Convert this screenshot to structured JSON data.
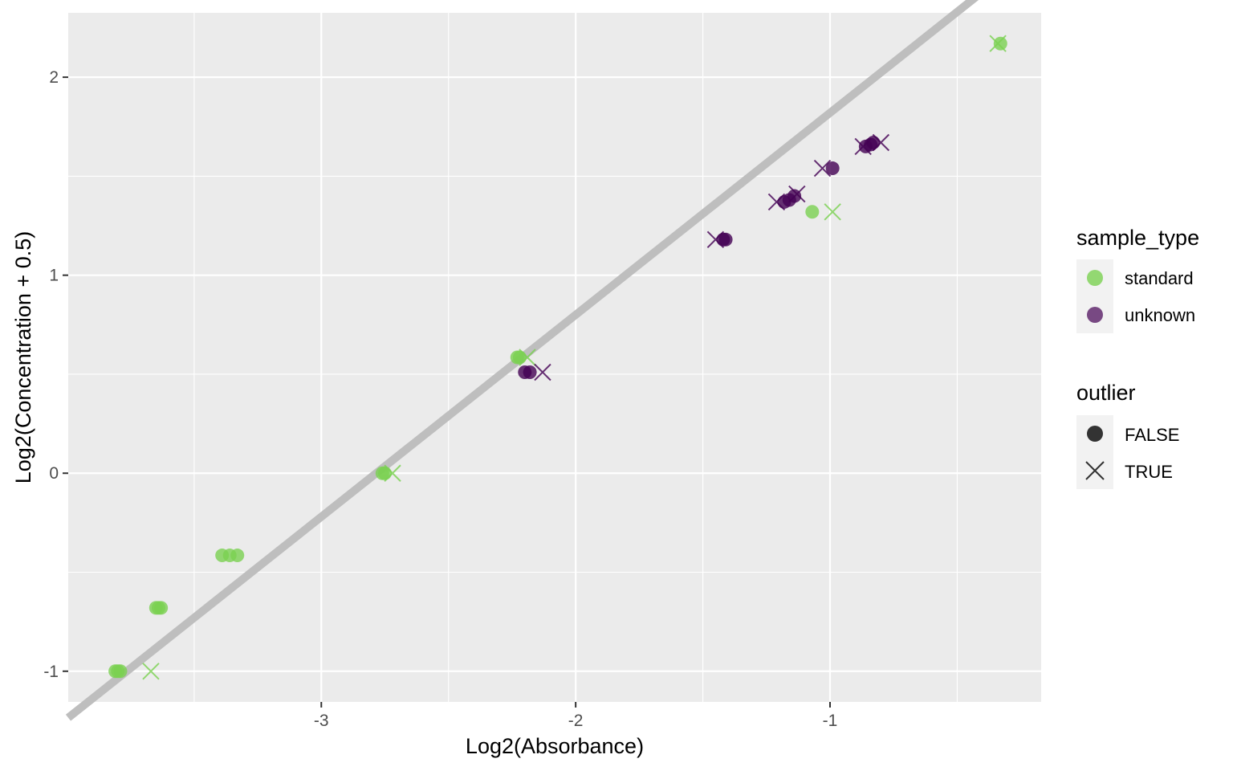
{
  "chart_data": {
    "type": "scatter",
    "title": "",
    "xlabel": "Log2(Absorbance)",
    "ylabel": "Log2(Concentration + 0.5)",
    "xlim": [
      -3.995,
      -0.17
    ],
    "ylim": [
      -1.155,
      2.325
    ],
    "x_major_ticks": [
      -3,
      -2,
      -1
    ],
    "x_minor_ticks": [
      -3.5,
      -2.5,
      -1.5,
      -0.5
    ],
    "y_major_ticks": [
      -1,
      0,
      1,
      2
    ],
    "y_minor_ticks": [
      -0.5,
      0.5,
      1.5
    ],
    "x_tick_labels": [
      "-3",
      "-2",
      "-1"
    ],
    "y_tick_labels": [
      "-1",
      "0",
      "1",
      "2"
    ],
    "grid": true,
    "colors": {
      "panel_background": "#EBEBEB",
      "grid": "#FFFFFF",
      "standard": "#7AD151",
      "unknown": "#440154",
      "fit_line": "#BEBEBE",
      "legend_key_background": "#F2F2F2",
      "legend_shape_key": "#333333"
    },
    "fit_line": {
      "slope": 1.02,
      "intercept": 2.84
    },
    "series": [
      {
        "name": "standard",
        "points": [
          {
            "x": -3.81,
            "y": -1.0,
            "outlier": false
          },
          {
            "x": -3.8,
            "y": -1.0,
            "outlier": false
          },
          {
            "x": -3.79,
            "y": -1.0,
            "outlier": false
          },
          {
            "x": -3.67,
            "y": -1.0,
            "outlier": true
          },
          {
            "x": -3.65,
            "y": -0.68,
            "outlier": false
          },
          {
            "x": -3.64,
            "y": -0.68,
            "outlier": false
          },
          {
            "x": -3.63,
            "y": -0.68,
            "outlier": false
          },
          {
            "x": -3.39,
            "y": -0.415,
            "outlier": false
          },
          {
            "x": -3.36,
            "y": -0.415,
            "outlier": false
          },
          {
            "x": -3.33,
            "y": -0.415,
            "outlier": false
          },
          {
            "x": -2.76,
            "y": 0.0,
            "outlier": false
          },
          {
            "x": -2.75,
            "y": 0.0,
            "outlier": false
          },
          {
            "x": -2.72,
            "y": 0.0,
            "outlier": true
          },
          {
            "x": -2.23,
            "y": 0.585,
            "outlier": false
          },
          {
            "x": -2.22,
            "y": 0.585,
            "outlier": false
          },
          {
            "x": -2.19,
            "y": 0.585,
            "outlier": true
          },
          {
            "x": -1.07,
            "y": 1.32,
            "outlier": false
          },
          {
            "x": -0.99,
            "y": 1.32,
            "outlier": true
          },
          {
            "x": -0.34,
            "y": 2.17,
            "outlier": true
          },
          {
            "x": -0.33,
            "y": 2.17,
            "outlier": false
          }
        ]
      },
      {
        "name": "unknown",
        "points": [
          {
            "x": -2.2,
            "y": 0.51,
            "outlier": false
          },
          {
            "x": -2.18,
            "y": 0.51,
            "outlier": false
          },
          {
            "x": -2.13,
            "y": 0.51,
            "outlier": true
          },
          {
            "x": -1.45,
            "y": 1.18,
            "outlier": true
          },
          {
            "x": -1.42,
            "y": 1.18,
            "outlier": false
          },
          {
            "x": -1.41,
            "y": 1.18,
            "outlier": false
          },
          {
            "x": -1.21,
            "y": 1.37,
            "outlier": true
          },
          {
            "x": -1.18,
            "y": 1.37,
            "outlier": false
          },
          {
            "x": -1.16,
            "y": 1.38,
            "outlier": false
          },
          {
            "x": -1.14,
            "y": 1.4,
            "outlier": false
          },
          {
            "x": -1.13,
            "y": 1.41,
            "outlier": true
          },
          {
            "x": -1.03,
            "y": 1.54,
            "outlier": true
          },
          {
            "x": -0.99,
            "y": 1.54,
            "outlier": false
          },
          {
            "x": -0.87,
            "y": 1.65,
            "outlier": true
          },
          {
            "x": -0.86,
            "y": 1.65,
            "outlier": false
          },
          {
            "x": -0.84,
            "y": 1.66,
            "outlier": false
          },
          {
            "x": -0.83,
            "y": 1.67,
            "outlier": false
          },
          {
            "x": -0.8,
            "y": 1.67,
            "outlier": true
          }
        ]
      }
    ],
    "legends": [
      {
        "title": "sample_type",
        "aesthetic": "color",
        "entries": [
          "standard",
          "unknown"
        ]
      },
      {
        "title": "outlier",
        "aesthetic": "shape",
        "entries": [
          "FALSE",
          "TRUE"
        ]
      }
    ],
    "legend_position": "right"
  }
}
